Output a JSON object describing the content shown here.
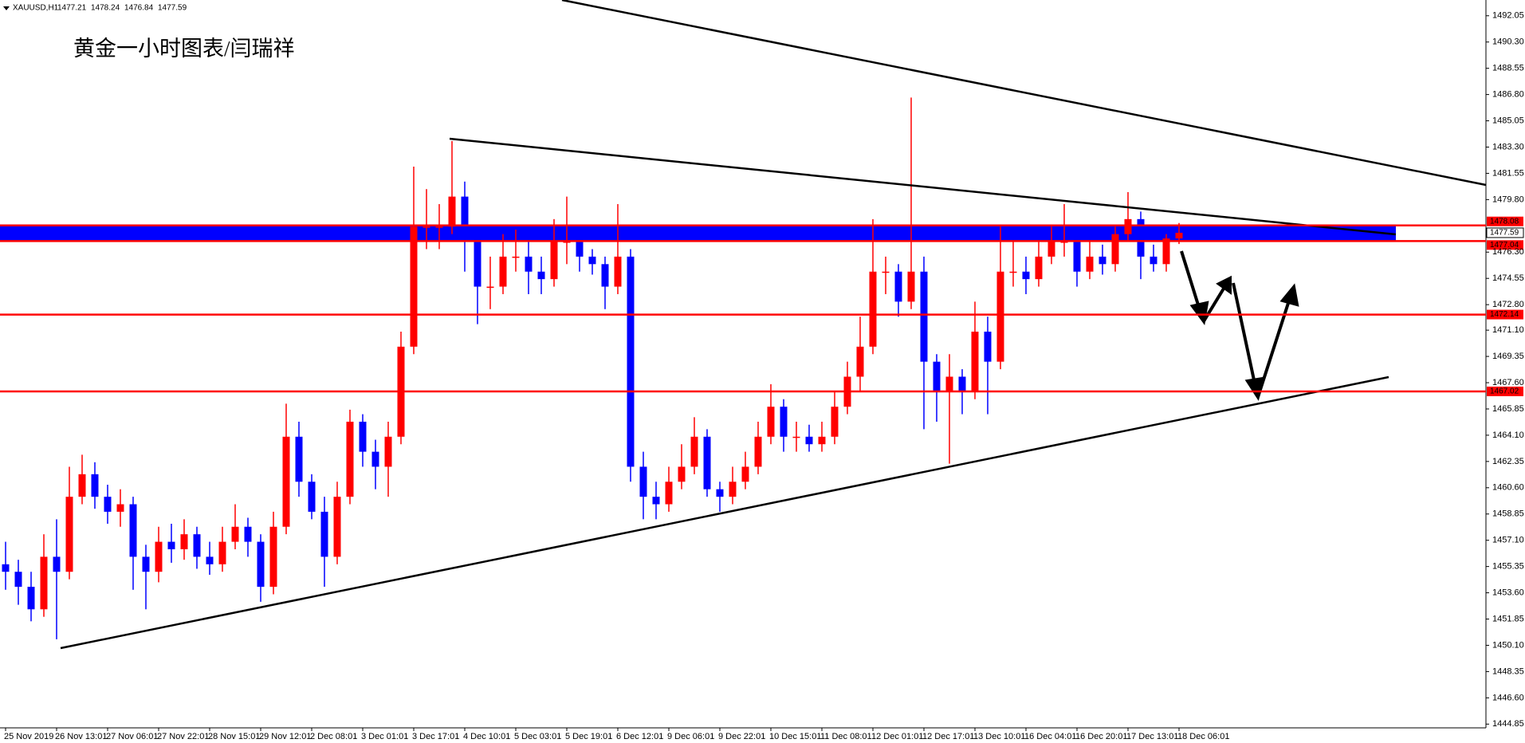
{
  "chart_data": {
    "type": "candlestick",
    "symbol": "XAUUSD,H1",
    "title": "黄金一小时图表/闫瑞祥",
    "up_color": "#ff0000",
    "down_color": "#0000ff",
    "level_color": "#ff0000",
    "zone_color": "#0000ff",
    "categories": [
      "25 Nov 2019",
      null,
      null,
      null,
      "26 Nov 13:01",
      null,
      null,
      null,
      "27 Nov 06:01",
      null,
      null,
      null,
      "27 Nov 22:01",
      null,
      null,
      null,
      "28 Nov 15:01",
      null,
      null,
      null,
      "29 Nov 12:01",
      null,
      null,
      null,
      "2 Dec 08:01",
      null,
      null,
      null,
      "3 Dec 01:01",
      null,
      null,
      null,
      "3 Dec 17:01",
      null,
      null,
      null,
      "4 Dec 10:01",
      null,
      null,
      null,
      "5 Dec 03:01",
      null,
      null,
      null,
      "5 Dec 19:01",
      null,
      null,
      null,
      "6 Dec 12:01",
      null,
      null,
      null,
      "9 Dec 06:01",
      null,
      null,
      null,
      "9 Dec 22:01",
      null,
      null,
      null,
      "10 Dec 15:01",
      null,
      null,
      null,
      "11 Dec 08:01",
      null,
      null,
      null,
      "12 Dec 01:01",
      null,
      null,
      null,
      "12 Dec 17:01",
      null,
      null,
      null,
      "13 Dec 10:01",
      null,
      null,
      null,
      "16 Dec 04:01",
      null,
      null,
      null,
      "16 Dec 20:01",
      null,
      null,
      null,
      "17 Dec 13:01",
      null,
      null,
      null,
      "18 Dec 06:01"
    ],
    "open": [
      1455.5,
      1455,
      1454,
      1452.5,
      1456,
      1455,
      1460,
      1461.5,
      1460,
      1459,
      1459.5,
      1456,
      1455,
      1457,
      1456.5,
      1457.5,
      1456,
      1455.5,
      1457,
      1458,
      1457,
      1454,
      1458,
      1464,
      1461,
      1459,
      1456,
      1460,
      1465,
      1463,
      1462,
      1464,
      1470,
      1478,
      1478,
      1478,
      1480,
      1477,
      1474,
      1474,
      1476,
      1476,
      1475,
      1474.5,
      1477,
      1477,
      1476,
      1475.5,
      1474,
      1476,
      1462,
      1460,
      1459.5,
      1461,
      1462,
      1464,
      1460.5,
      1460,
      1461,
      1462,
      1464,
      1466,
      1464,
      1464,
      1463.5,
      1464,
      1466,
      1468,
      1470,
      1475,
      1475,
      1473,
      1475,
      1469,
      1467,
      1468,
      1467,
      1471,
      1469,
      1475,
      1475,
      1474.5,
      1476,
      1477,
      1477,
      1475,
      1476,
      1475.5,
      1477.5,
      1478.5,
      1476,
      1475.5,
      1477.21
    ],
    "high": [
      1457,
      1455.8,
      1455,
      1457.5,
      1458.5,
      1462,
      1462.8,
      1462.3,
      1460.8,
      1460.5,
      1460,
      1456.8,
      1458,
      1458.2,
      1458.5,
      1458,
      1457,
      1458,
      1459.5,
      1458.6,
      1457.5,
      1459,
      1466.2,
      1465,
      1461.5,
      1460,
      1461,
      1465.8,
      1465.5,
      1463.8,
      1465,
      1471,
      1482,
      1480.5,
      1479.5,
      1483.7,
      1481,
      1478,
      1476,
      1477.5,
      1477.8,
      1477,
      1476,
      1478.5,
      1480,
      1477.5,
      1476.5,
      1476,
      1479.5,
      1476.5,
      1463,
      1461,
      1462,
      1463.5,
      1465.3,
      1464.5,
      1461,
      1462,
      1463,
      1465,
      1467.5,
      1466.5,
      1465,
      1464.8,
      1465,
      1467,
      1469,
      1472,
      1478.5,
      1476,
      1475.5,
      1486.6,
      1476,
      1469.5,
      1469.5,
      1468.5,
      1473,
      1472,
      1478,
      1477,
      1476,
      1477,
      1478,
      1479.5,
      1477.5,
      1477,
      1476.8,
      1478,
      1480.3,
      1479,
      1476.8,
      1477.5,
      1478.24
    ],
    "low": [
      1453.8,
      1452.8,
      1451.7,
      1452,
      1450.5,
      1454.5,
      1459.5,
      1459.2,
      1458.2,
      1458,
      1453.8,
      1452.5,
      1454.3,
      1455.6,
      1455.8,
      1455.2,
      1454.8,
      1455,
      1456.5,
      1456,
      1453,
      1453.5,
      1457.5,
      1460,
      1458.5,
      1454,
      1455.5,
      1459.5,
      1462,
      1460.5,
      1460,
      1463.5,
      1469.5,
      1476.5,
      1476.5,
      1477.5,
      1475,
      1471.5,
      1472.5,
      1473.5,
      1475,
      1473.5,
      1473.5,
      1474,
      1475.5,
      1475,
      1474.8,
      1472.5,
      1473.5,
      1461,
      1458.5,
      1458.5,
      1459,
      1460.5,
      1461.5,
      1460,
      1459,
      1459.5,
      1460.5,
      1461.5,
      1463.5,
      1463,
      1463,
      1463,
      1463,
      1463.5,
      1465.5,
      1467,
      1469.5,
      1473.5,
      1472,
      1472.5,
      1464.5,
      1465,
      1462.2,
      1465.5,
      1466.5,
      1465.5,
      1468.5,
      1474,
      1473.5,
      1474,
      1475.5,
      1476,
      1474,
      1474.5,
      1474.8,
      1475,
      1477,
      1474.5,
      1475,
      1475,
      1476.84
    ],
    "close": [
      1455,
      1454,
      1452.5,
      1456,
      1455,
      1460,
      1461.5,
      1460,
      1459,
      1459.5,
      1456,
      1455,
      1457,
      1456.5,
      1457.5,
      1456,
      1455.5,
      1457,
      1458,
      1457,
      1454,
      1458,
      1464,
      1461,
      1459,
      1456,
      1460,
      1465,
      1463,
      1462,
      1464,
      1470,
      1478,
      1478,
      1478,
      1480,
      1477,
      1474,
      1474,
      1476,
      1476,
      1475,
      1474.5,
      1477,
      1477,
      1476,
      1475.5,
      1474,
      1476,
      1462,
      1460,
      1459.5,
      1461,
      1462,
      1464,
      1460.5,
      1460,
      1461,
      1462,
      1464,
      1466,
      1464,
      1464,
      1463.5,
      1464,
      1466,
      1468,
      1470,
      1475,
      1475,
      1473,
      1475,
      1469,
      1467,
      1468,
      1467,
      1471,
      1469,
      1475,
      1475,
      1474.5,
      1476,
      1477,
      1477,
      1475,
      1476,
      1475.5,
      1477.5,
      1478.5,
      1476,
      1475.5,
      1477.21,
      1477.59
    ],
    "ylim": [
      1444.6,
      1493.1
    ],
    "yticks": [
      1492.05,
      {
        "value": 1490.3,
        "label": "1490.30"
      },
      1488.55,
      {
        "value": 1486.8,
        "label": "1486.80"
      },
      1485.05,
      {
        "value": 1483.3,
        "label": "1483.30"
      },
      1481.55,
      {
        "value": 1479.8,
        "label": "1479.80"
      },
      {
        "value": 1476.3,
        "label": "1476.30"
      },
      1474.55,
      {
        "value": 1472.8,
        "label": "1472.80"
      },
      {
        "value": 1471.1,
        "label": "1471.10"
      },
      1469.35,
      {
        "value": 1467.6,
        "label": "1467.60"
      },
      1465.85,
      {
        "value": 1464.1,
        "label": "1464.10"
      },
      1462.35,
      {
        "value": 1460.6,
        "label": "1460.60"
      },
      1458.85,
      {
        "value": 1457.1,
        "label": "1457.10"
      },
      1455.35,
      {
        "value": 1453.6,
        "label": "1453.60"
      },
      1451.85,
      {
        "value": 1450.1,
        "label": "1450.10"
      },
      1448.35,
      {
        "value": 1446.6,
        "label": "1446.60"
      },
      1444.85
    ],
    "levels": [
      1478.08,
      1477.04,
      1472.14,
      1467.02
    ]
  }
}
